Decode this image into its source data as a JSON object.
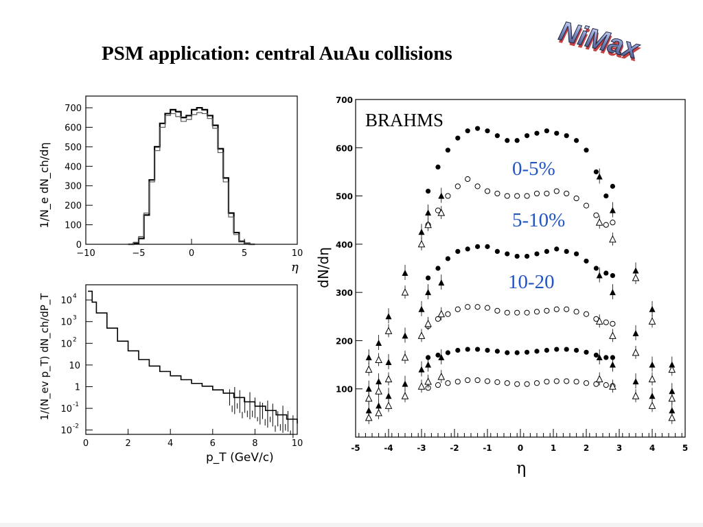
{
  "slide": {
    "title": "PSM application: central AuAu collisions",
    "logo_text": "NiMax"
  },
  "colors": {
    "accent_blue": "#2255c4",
    "ink": "#000000"
  },
  "chart_data": [
    {
      "type": "line",
      "panel": "eta-distribution",
      "title": "",
      "xlabel": "η",
      "ylabel": "1/N_e dN_ch/dη",
      "xlim": [
        -10,
        10
      ],
      "ylim": [
        0,
        760
      ],
      "xticks": [
        "−10",
        "−5",
        "0",
        "5",
        "10"
      ],
      "yticks": [
        "0",
        "100",
        "200",
        "300",
        "400",
        "500",
        "600",
        "700"
      ],
      "grid": false,
      "series": [
        {
          "bins": [
            -6,
            -5.5,
            -5,
            -4.5,
            -4,
            -3.5,
            -3,
            -2.5,
            -2,
            -1.5,
            -1,
            -0.5,
            0,
            0.5,
            1,
            1.5,
            2,
            2.5,
            3,
            3.5,
            4,
            4.5,
            5,
            5.5,
            6
          ],
          "values": [
            0,
            5,
            30,
            150,
            330,
            500,
            620,
            670,
            690,
            680,
            650,
            660,
            690,
            700,
            690,
            660,
            610,
            490,
            340,
            160,
            60,
            15,
            5,
            0
          ]
        },
        {
          "bins": [
            -6,
            -5.5,
            -5,
            -4.5,
            -4,
            -3.5,
            -3,
            -2.5,
            -2,
            -1.5,
            -1,
            -0.5,
            0,
            0.5,
            1,
            1.5,
            2,
            2.5,
            3,
            3.5,
            4,
            4.5,
            5,
            5.5,
            6
          ],
          "values": [
            0,
            10,
            40,
            160,
            320,
            480,
            600,
            660,
            670,
            655,
            630,
            640,
            665,
            675,
            670,
            645,
            595,
            470,
            320,
            140,
            50,
            12,
            4,
            0
          ]
        }
      ]
    },
    {
      "type": "line",
      "panel": "pt-spectrum",
      "title": "",
      "xlabel": "p_T (GeV/c)",
      "ylabel": "1/(N_ev p_T) dN_ch/dP_T",
      "xlim": [
        0,
        10
      ],
      "ylim_log10": [
        -2.2,
        4.7
      ],
      "log_y": true,
      "xticks": [
        "0",
        "2",
        "4",
        "6",
        "8",
        "10"
      ],
      "yticks": [
        "10^-2",
        "10^-1",
        "1",
        "10",
        "10^2",
        "10^3",
        "10^4"
      ],
      "series": [
        {
          "x": [
            0.1,
            0.3,
            0.5,
            1,
            1.5,
            2,
            2.5,
            3,
            3.5,
            4,
            4.5,
            5,
            5.5,
            6,
            6.5,
            7,
            7.5,
            8,
            8.5,
            9,
            9.5,
            10
          ],
          "log10_y": [
            4.4,
            3.9,
            3.4,
            2.7,
            2.1,
            1.65,
            1.25,
            0.95,
            0.7,
            0.5,
            0.32,
            0.15,
            0.02,
            -0.15,
            -0.3,
            -0.5,
            -0.7,
            -0.9,
            -1.1,
            -1.3,
            -1.5,
            -1.7
          ]
        }
      ]
    },
    {
      "type": "scatter",
      "panel": "brahms-comparison",
      "title": "",
      "xlabel": "η",
      "ylabel": "dN/dη",
      "xlim": [
        -5,
        5
      ],
      "ylim": [
        0,
        700
      ],
      "xticks": [
        "-5",
        "-4",
        "-3",
        "-2",
        "-1",
        "0",
        "1",
        "2",
        "3",
        "4",
        "5"
      ],
      "yticks": [
        "100",
        "200",
        "300",
        "400",
        "500",
        "600",
        "700"
      ],
      "annotations": [
        "BRAHMS",
        "0-5%",
        "5-10%",
        "10-20"
      ],
      "series": [
        {
          "marker": "filled-circle",
          "x": [
            -2.8,
            -2.5,
            -2.2,
            -1.9,
            -1.6,
            -1.3,
            -1.0,
            -0.7,
            -0.4,
            -0.1,
            0.2,
            0.5,
            0.8,
            1.1,
            1.4,
            1.7,
            2.0,
            2.3,
            2.6,
            2.8
          ],
          "y": [
            510,
            560,
            595,
            620,
            635,
            640,
            635,
            625,
            615,
            615,
            625,
            630,
            635,
            630,
            625,
            615,
            595,
            550,
            500,
            520
          ]
        },
        {
          "marker": "open-circle",
          "x": [
            -2.8,
            -2.5,
            -2.2,
            -1.9,
            -1.6,
            -1.3,
            -1.0,
            -0.7,
            -0.4,
            -0.1,
            0.2,
            0.5,
            0.8,
            1.1,
            1.4,
            1.7,
            2.0,
            2.3,
            2.6,
            2.8
          ],
          "y": [
            440,
            470,
            500,
            520,
            535,
            520,
            510,
            505,
            500,
            500,
            500,
            505,
            505,
            510,
            505,
            495,
            480,
            460,
            440,
            445
          ]
        },
        {
          "marker": "filled-circle",
          "x": [
            -2.8,
            -2.5,
            -2.2,
            -1.9,
            -1.6,
            -1.3,
            -1.0,
            -0.7,
            -0.4,
            -0.1,
            0.2,
            0.5,
            0.8,
            1.1,
            1.4,
            1.7,
            2.0,
            2.3,
            2.6,
            2.8
          ],
          "y": [
            330,
            350,
            370,
            385,
            390,
            395,
            395,
            385,
            380,
            375,
            375,
            380,
            385,
            390,
            385,
            380,
            365,
            350,
            340,
            335
          ]
        },
        {
          "marker": "open-circle",
          "x": [
            -2.8,
            -2.5,
            -2.2,
            -1.9,
            -1.6,
            -1.3,
            -1.0,
            -0.7,
            -0.4,
            -0.1,
            0.2,
            0.5,
            0.8,
            1.1,
            1.4,
            1.7,
            2.0,
            2.3,
            2.6,
            2.8
          ],
          "y": [
            230,
            245,
            255,
            265,
            270,
            270,
            268,
            262,
            258,
            258,
            258,
            260,
            262,
            265,
            265,
            260,
            255,
            245,
            238,
            235
          ]
        },
        {
          "marker": "filled-circle",
          "x": [
            -2.8,
            -2.5,
            -2.2,
            -1.9,
            -1.6,
            -1.3,
            -1.0,
            -0.7,
            -0.4,
            -0.1,
            0.2,
            0.5,
            0.8,
            1.1,
            1.4,
            1.7,
            2.0,
            2.3,
            2.6,
            2.8
          ],
          "y": [
            165,
            170,
            175,
            180,
            182,
            182,
            180,
            178,
            175,
            175,
            176,
            178,
            180,
            182,
            182,
            180,
            176,
            170,
            165,
            165
          ]
        },
        {
          "marker": "open-circle",
          "x": [
            -2.8,
            -2.5,
            -2.2,
            -1.9,
            -1.6,
            -1.3,
            -1.0,
            -0.7,
            -0.4,
            -0.1,
            0.2,
            0.5,
            0.8,
            1.1,
            1.4,
            1.7,
            2.0,
            2.3,
            2.6,
            2.8
          ],
          "y": [
            102,
            108,
            112,
            115,
            118,
            118,
            116,
            114,
            112,
            110,
            110,
            112,
            115,
            116,
            116,
            115,
            112,
            110,
            108,
            106
          ]
        },
        {
          "marker": "filled-triangle",
          "x": [
            -4.6,
            -4.3,
            -4.0,
            -3.5,
            -3.0,
            -2.8,
            -2.4,
            2.4,
            2.8,
            3.5,
            4.0,
            4.6
          ],
          "y": [
            165,
            195,
            250,
            340,
            425,
            465,
            500,
            540,
            470,
            345,
            265,
            150
          ]
        },
        {
          "marker": "open-triangle",
          "x": [
            -4.6,
            -4.3,
            -4.0,
            -3.5,
            -3.0,
            -2.8,
            -2.4,
            2.4,
            2.8,
            3.5,
            4.0,
            4.6
          ],
          "y": [
            140,
            160,
            220,
            300,
            400,
            440,
            465,
            445,
            410,
            330,
            240,
            140
          ]
        },
        {
          "marker": "filled-triangle",
          "x": [
            -4.6,
            -4.3,
            -4.0,
            -3.5,
            -3.0,
            -2.8,
            -2.4,
            2.4,
            2.8,
            3.5,
            4.0,
            4.6
          ],
          "y": [
            100,
            115,
            155,
            210,
            265,
            300,
            320,
            335,
            300,
            215,
            150,
            95
          ]
        },
        {
          "marker": "open-triangle",
          "x": [
            -4.6,
            -4.3,
            -4.0,
            -3.5,
            -3.0,
            -2.8,
            -2.4,
            2.4,
            2.8,
            3.5,
            4.0,
            4.6
          ],
          "y": [
            80,
            95,
            120,
            165,
            210,
            235,
            255,
            240,
            210,
            175,
            120,
            80
          ]
        },
        {
          "marker": "filled-triangle",
          "x": [
            -4.6,
            -4.3,
            -4.0,
            -3.5,
            -3.0,
            -2.8,
            -2.4,
            2.4,
            2.8,
            3.5,
            4.0,
            4.6
          ],
          "y": [
            55,
            65,
            85,
            110,
            140,
            150,
            165,
            165,
            150,
            115,
            85,
            55
          ]
        },
        {
          "marker": "open-triangle",
          "x": [
            -4.6,
            -4.3,
            -4.0,
            -3.5,
            -3.0,
            -2.8,
            -2.4,
            2.4,
            2.8,
            3.5,
            4.0,
            4.6
          ],
          "y": [
            40,
            50,
            65,
            85,
            105,
            115,
            125,
            120,
            105,
            85,
            65,
            40
          ]
        }
      ]
    }
  ]
}
